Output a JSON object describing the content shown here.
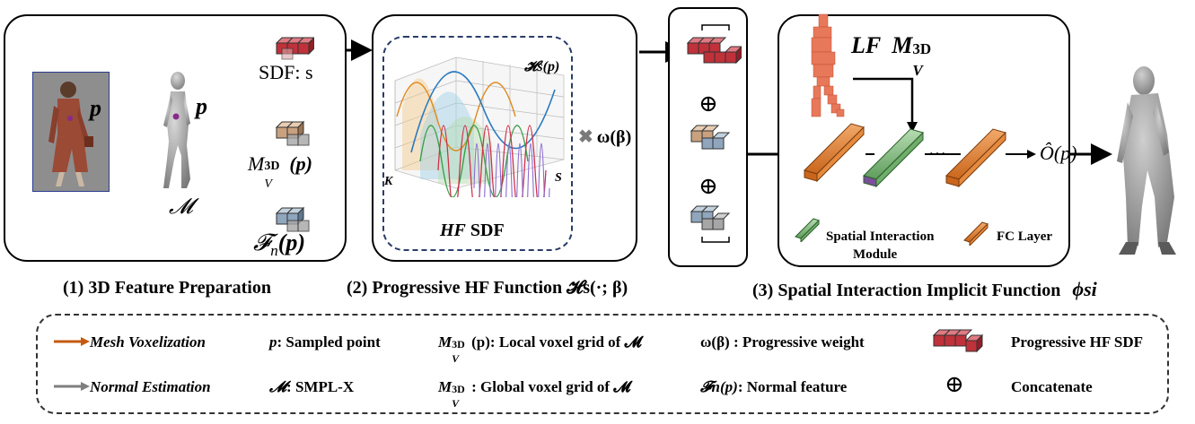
{
  "panel1": {
    "point_label_1": "p",
    "point_label_2": "p",
    "mesh_label": "𝓜",
    "sdf_label": "SDF: s",
    "voxel_label_main": "M",
    "voxel_label_sup": "3D",
    "voxel_label_sub": "V",
    "voxel_label_tail": "(p)",
    "normal_label_main": "𝓕",
    "normal_label_sub": "n",
    "normal_label_tail": "(p)",
    "caption": "(1) 3D Feature Preparation"
  },
  "panel2": {
    "plot_label": "𝓗s(p)",
    "axis_k": "K",
    "axis_s": "S",
    "hf_italic": "HF",
    "hf_rest": " SDF",
    "weight_label": "ω(β)",
    "caption": "(2) Progressive HF Function 𝓗s(·; β)"
  },
  "panel3": {
    "concat_symbol": "⊕",
    "concat_symbol_2": "⊕"
  },
  "panel4": {
    "lf_italic": "LF",
    "lf_main": "M",
    "lf_sup": "3D",
    "lf_sub": "V",
    "ellipsis": "···",
    "output_label": "Ô(p)",
    "legend_spatial": "Spatial Interaction",
    "legend_module": "Module",
    "legend_fc": "FC Layer",
    "caption": "(3) Spatial Interaction Implicit Function",
    "caption_phi": "ϕsi"
  },
  "legend": {
    "mesh_voxelization": "Mesh Voxelization",
    "normal_estimation": "Normal Estimation",
    "p_symbol": "p",
    "p_text": ": Sampled point",
    "m_symbol": "𝓜",
    "m_text": ": SMPL-X",
    "local_voxel_text": "(p): Local voxel grid of 𝓜",
    "global_voxel_text": ": Global voxel grid of 𝓜",
    "weight_symbol": "ω(β)",
    "weight_text": " : Progressive weight",
    "normal_feature_symbol": "𝓕n(p)",
    "normal_feature_text": ": Normal feature",
    "hf_sdf_text": "Progressive HF SDF",
    "concat_symbol": "⊕",
    "concat_text": "Concatenate"
  },
  "colors": {
    "orange_arrow": "#c55a11",
    "gray_arrow": "#7f7f7f",
    "red_cube": "#c0313a",
    "tan_cube": "#c9a17f",
    "blue_cube": "#8fa6bd",
    "fc_orange": "#e0893a",
    "sim_green": "#8cc08a",
    "voxel_human": "#e8785a",
    "person_photo_bg": "#8e8e8e"
  }
}
